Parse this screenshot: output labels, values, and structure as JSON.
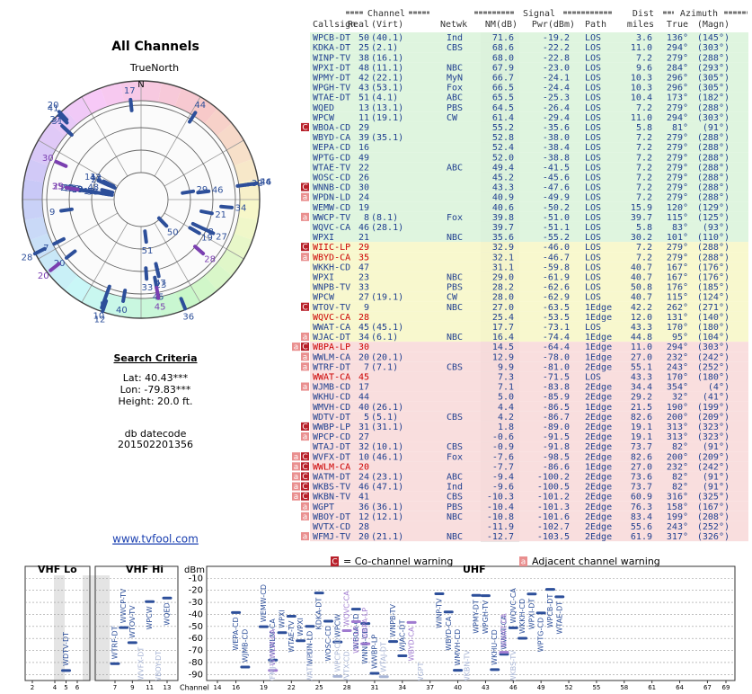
{
  "left": {
    "title": "All Channels",
    "north_label": "TrueNorth",
    "north_marker": "N",
    "criteria_title": "Search Criteria",
    "criteria": [
      "Lat: 40.43***",
      "Lon: -79.83***",
      "Height: 20.0 ft."
    ],
    "datecode_label": "db datecode",
    "datecode": "201502201356",
    "link": "www.tvfool.com"
  },
  "table": {
    "groups": [
      "Channel",
      "Signal",
      "Dist",
      "Azimuth"
    ],
    "columns": [
      "Callsign",
      "Real",
      "(Virt)",
      "Netwk",
      "NM(dB)",
      "Pwr(dBm)",
      "Path",
      "miles",
      "True",
      "(Magn)"
    ],
    "warning_icons": {
      "co": "C",
      "adj": "a"
    },
    "rows": [
      {
        "call": "WPCB-DT",
        "real": 50,
        "virt": "(40.1)",
        "net": "Ind",
        "nm": 71.6,
        "pwr": -19.2,
        "path": "LOS",
        "dist": 3.6,
        "true": {
          "value": 136,
          "label": "136°"
        },
        "magn": "(145°)",
        "bg": "#d9f3d9"
      },
      {
        "call": "KDKA-DT",
        "real": 25,
        "virt": "(2.1)",
        "net": "CBS",
        "nm": 68.6,
        "pwr": -22.2,
        "path": "LOS",
        "dist": {
          "value": 11,
          "label": "11.0"
        },
        "true": {
          "value": 294,
          "label": "294°"
        },
        "magn": "(303°)",
        "bg": "#d9f3d9"
      },
      {
        "call": "WINP-TV",
        "real": 38,
        "virt": "(16.1)",
        "nm": {
          "value": 68,
          "label": "68.0"
        },
        "pwr": -22.8,
        "path": "LOS",
        "dist": 7.2,
        "true": {
          "value": 279,
          "label": "279°"
        },
        "magn": "(288°)",
        "bg": "#d9f3d9"
      },
      {
        "call": "WPXI-DT",
        "real": 48,
        "virt": "(11.1)",
        "net": "NBC",
        "nm": 67.9,
        "pwr": {
          "value": -23,
          "label": "-23.0"
        },
        "path": "LOS",
        "dist": 9.6,
        "true": {
          "value": 284,
          "label": "284°"
        },
        "magn": "(293°)",
        "bg": "#d9f3d9"
      },
      {
        "call": "WPMY-DT",
        "real": 42,
        "virt": "(22.1)",
        "net": "MyN",
        "nm": 66.7,
        "pwr": -24.1,
        "path": "LOS",
        "dist": 10.3,
        "true": {
          "value": 296,
          "label": "296°"
        },
        "magn": "(305°)",
        "bg": "#d9f3d9"
      },
      {
        "call": "WPGH-TV",
        "real": 43,
        "virt": "(53.1)",
        "net": "Fox",
        "nm": 66.5,
        "pwr": -24.4,
        "path": "LOS",
        "dist": 10.3,
        "true": {
          "value": 296,
          "label": "296°"
        },
        "magn": "(305°)",
        "bg": "#d9f3d9"
      },
      {
        "call": "WTAE-DT",
        "real": 51,
        "virt": "(4.1)",
        "net": "ABC",
        "nm": 65.5,
        "pwr": -25.3,
        "path": "LOS",
        "dist": 10.4,
        "true": {
          "value": 173,
          "label": "173°"
        },
        "magn": "(182°)",
        "bg": "#d9f3d9"
      },
      {
        "call": "WQED",
        "real": 13,
        "virt": "(13.1)",
        "net": "PBS",
        "nm": 64.5,
        "pwr": -26.4,
        "path": "LOS",
        "dist": 7.2,
        "true": {
          "value": 279,
          "label": "279°"
        },
        "magn": "(288°)",
        "bg": "#d9f3d9"
      },
      {
        "call": "WPCW",
        "real": 11,
        "virt": "(19.1)",
        "net": "CW",
        "nm": 61.4,
        "pwr": -29.4,
        "path": "LOS",
        "dist": {
          "value": 11,
          "label": "11.0"
        },
        "true": {
          "value": 294,
          "label": "294°"
        },
        "magn": "(303°)",
        "bg": "#d9f3d9"
      },
      {
        "call": "WBOA-CD",
        "real": 29,
        "nm": 55.2,
        "pwr": -35.6,
        "path": "LOS",
        "dist": 5.8,
        "true": {
          "value": 81,
          "label": "81°"
        },
        "magn": "(91°)",
        "bg": "#d9f3d9",
        "co": true
      },
      {
        "call": "WBYD-CA",
        "real": 39,
        "virt": "(35.1)",
        "nm": 52.8,
        "pwr": {
          "value": -38,
          "label": "-38.0"
        },
        "path": "LOS",
        "dist": 7.2,
        "true": {
          "value": 279,
          "label": "279°"
        },
        "magn": "(288°)",
        "bg": "#d9f3d9"
      },
      {
        "call": "WEPA-CD",
        "real": 16,
        "nm": 52.4,
        "pwr": -38.4,
        "path": "LOS",
        "dist": 7.2,
        "true": {
          "value": 279,
          "label": "279°"
        },
        "magn": "(288°)",
        "bg": "#d9f3d9"
      },
      {
        "call": "WPTG-CD",
        "real": 49,
        "nm": {
          "value": 52,
          "label": "52.0"
        },
        "pwr": -38.8,
        "path": "LOS",
        "dist": 7.2,
        "true": {
          "value": 279,
          "label": "279°"
        },
        "magn": "(288°)",
        "bg": "#d9f3d9"
      },
      {
        "call": "WTAE-TV",
        "real": 22,
        "net": "ABC",
        "nm": 49.4,
        "pwr": -41.5,
        "path": "LOS",
        "dist": 7.2,
        "true": {
          "value": 279,
          "label": "279°"
        },
        "magn": "(288°)",
        "bg": "#d9f3d9"
      },
      {
        "call": "WOSC-CD",
        "real": 26,
        "nm": 45.2,
        "pwr": -45.6,
        "path": "LOS",
        "dist": 7.2,
        "true": {
          "value": 279,
          "label": "279°"
        },
        "magn": "(288°)",
        "bg": "#d9f3d9"
      },
      {
        "call": "WNNB-CD",
        "real": 30,
        "nm": 43.3,
        "pwr": -47.6,
        "path": "LOS",
        "dist": 7.2,
        "true": {
          "value": 279,
          "label": "279°"
        },
        "magn": "(288°)",
        "bg": "#d9f3d9",
        "co": true
      },
      {
        "call": "WPDN-LD",
        "real": 24,
        "nm": 40.9,
        "pwr": -49.9,
        "path": "LOS",
        "dist": 7.2,
        "true": {
          "value": 279,
          "label": "279°"
        },
        "magn": "(288°)",
        "bg": "#d9f3d9",
        "adj": true
      },
      {
        "call": "WEMW-CD",
        "real": 19,
        "nm": 40.6,
        "pwr": -50.2,
        "path": "LOS",
        "dist": 15.9,
        "true": {
          "value": 120,
          "label": "120°"
        },
        "magn": "(129°)",
        "bg": "#d9f3d9"
      },
      {
        "call": "WWCP-TV",
        "real": 8,
        "virt": "(8.1)",
        "net": "Fox",
        "nm": 39.8,
        "pwr": {
          "value": -51,
          "label": "-51.0"
        },
        "path": "LOS",
        "dist": 39.7,
        "true": {
          "value": 115,
          "label": "115°"
        },
        "magn": "(125°)",
        "bg": "#d9f3d9",
        "adj": true
      },
      {
        "call": "WQVC-CA",
        "real": 46,
        "virt": "(28.1)",
        "nm": 39.7,
        "pwr": -51.1,
        "path": "LOS",
        "dist": 5.8,
        "true": {
          "value": 83,
          "label": "83°"
        },
        "magn": "(93°)",
        "bg": "#d9f3d9"
      },
      {
        "call": "WPXI",
        "real": 21,
        "net": "NBC",
        "nm": 35.6,
        "pwr": -55.2,
        "path": "LOS",
        "dist": 30.2,
        "true": {
          "value": 101,
          "label": "101°"
        },
        "magn": "(110°)",
        "bg": "#d9f3d9"
      },
      {
        "call": "WIIC-LP",
        "real": 29,
        "nm": 32.9,
        "pwr": {
          "value": -46,
          "label": "-46.0"
        },
        "path": "LOS",
        "dist": 7.2,
        "true": {
          "value": 279,
          "label": "279°"
        },
        "magn": "(288°)",
        "bg": "#f7f7c6",
        "co": true,
        "fg": "#cc0000"
      },
      {
        "call": "WBYD-CA",
        "real": 35,
        "nm": 32.1,
        "pwr": -46.7,
        "path": "LOS",
        "dist": 7.2,
        "true": {
          "value": 279,
          "label": "279°"
        },
        "magn": "(288°)",
        "bg": "#f7f7c6",
        "adj": true,
        "fg": "#cc0000"
      },
      {
        "call": "WKKH-CD",
        "real": 47,
        "nm": 31.1,
        "pwr": -59.8,
        "path": "LOS",
        "dist": 40.7,
        "true": {
          "value": 167,
          "label": "167°"
        },
        "magn": "(176°)",
        "bg": "#f7f7c6"
      },
      {
        "call": "WPXI",
        "real": 23,
        "net": "NBC",
        "nm": {
          "value": 29,
          "label": "29.0"
        },
        "pwr": -61.9,
        "path": "LOS",
        "dist": 40.7,
        "true": {
          "value": 167,
          "label": "167°"
        },
        "magn": "(176°)",
        "bg": "#f7f7c6"
      },
      {
        "call": "WNPB-TV",
        "real": 33,
        "net": "PBS",
        "nm": 28.2,
        "pwr": -62.6,
        "path": "LOS",
        "dist": 50.8,
        "true": {
          "value": 176,
          "label": "176°"
        },
        "magn": "(185°)",
        "bg": "#f7f7c6"
      },
      {
        "call": "WPCW",
        "real": 27,
        "virt": "(19.1)",
        "net": "CW",
        "nm": {
          "value": 28,
          "label": "28.0"
        },
        "pwr": -62.9,
        "path": "LOS",
        "dist": 40.7,
        "true": {
          "value": 115,
          "label": "115°"
        },
        "magn": "(124°)",
        "bg": "#f7f7c6"
      },
      {
        "call": "WTOV-TV",
        "real": 9,
        "net": "NBC",
        "nm": {
          "value": 27,
          "label": "27.0"
        },
        "pwr": -63.5,
        "path": "1Edge",
        "dist": 42.2,
        "true": {
          "value": 262,
          "label": "262°"
        },
        "magn": "(271°)",
        "bg": "#f7f7c6",
        "co": true
      },
      {
        "call": "WQVC-CA",
        "real": 28,
        "nm": 25.4,
        "pwr": -53.5,
        "path": "1Edge",
        "dist": {
          "value": 12,
          "label": "12.0"
        },
        "true": {
          "value": 131,
          "label": "131°"
        },
        "magn": "(140°)",
        "bg": "#f7f7c6",
        "fg": "#cc0000"
      },
      {
        "call": "WWAT-CA",
        "real": 45,
        "virt": "(45.1)",
        "nm": 17.7,
        "pwr": -73.1,
        "path": "LOS",
        "dist": 43.3,
        "true": {
          "value": 170,
          "label": "170°"
        },
        "magn": "(180°)",
        "bg": "#f7f7c6"
      },
      {
        "call": "WJAC-DT",
        "real": 34,
        "virt": "(6.1)",
        "net": "NBC",
        "nm": 16.4,
        "pwr": -74.4,
        "path": "1Edge",
        "dist": 44.8,
        "true": {
          "value": 95,
          "label": "95°"
        },
        "magn": "(104°)",
        "bg": "#f7f7c6",
        "adj": true
      },
      {
        "call": "WBPA-LP",
        "real": 30,
        "nm": 14.5,
        "pwr": -64.4,
        "path": "1Edge",
        "dist": {
          "value": 11,
          "label": "11.0"
        },
        "true": {
          "value": 294,
          "label": "294°"
        },
        "magn": "(303°)",
        "bg": "#f8d8d8",
        "adj": true,
        "co": true,
        "fg": "#cc0000"
      },
      {
        "call": "WWLM-CA",
        "real": 20,
        "virt": "(20.1)",
        "nm": 12.9,
        "pwr": {
          "value": -78,
          "label": "-78.0"
        },
        "path": "1Edge",
        "dist": {
          "value": 27,
          "label": "27.0"
        },
        "true": {
          "value": 232,
          "label": "232°"
        },
        "magn": "(242°)",
        "bg": "#f8d8d8",
        "adj": true
      },
      {
        "call": "WTRF-DT",
        "real": 7,
        "virt": "(7.1)",
        "net": "CBS",
        "nm": 9.9,
        "pwr": {
          "value": -81,
          "label": "-81.0"
        },
        "path": "2Edge",
        "dist": 55.1,
        "true": {
          "value": 243,
          "label": "243°"
        },
        "magn": "(252°)",
        "bg": "#f8d8d8",
        "adj": true
      },
      {
        "call": "WWAT-CA",
        "real": 45,
        "nm": 7.3,
        "pwr": -71.5,
        "path": "LOS",
        "dist": 43.3,
        "true": {
          "value": 170,
          "label": "170°"
        },
        "magn": "(180°)",
        "bg": "#f8d8d8",
        "fg": "#cc0000"
      },
      {
        "call": "WJMB-CD",
        "real": 17,
        "nm": 7.1,
        "pwr": -83.8,
        "path": "2Edge",
        "dist": 34.4,
        "true": {
          "value": 354,
          "label": "354°"
        },
        "magn": "(4°)",
        "bg": "#f8d8d8",
        "adj": true
      },
      {
        "call": "WKHU-CD",
        "real": 44,
        "nm": {
          "value": 5,
          "label": "5.0"
        },
        "pwr": -85.9,
        "path": "2Edge",
        "dist": 29.2,
        "true": {
          "value": 32,
          "label": "32°"
        },
        "magn": "(41°)",
        "bg": "#f8d8d8"
      },
      {
        "call": "WMVH-CD",
        "real": 40,
        "virt": "(26.1)",
        "nm": 4.4,
        "pwr": -86.5,
        "path": "1Edge",
        "dist": 21.5,
        "true": {
          "value": 190,
          "label": "190°"
        },
        "magn": "(199°)",
        "bg": "#f8d8d8"
      },
      {
        "call": "WDTV-DT",
        "real": 5,
        "virt": "(5.1)",
        "net": "CBS",
        "nm": 4.2,
        "pwr": -86.7,
        "path": "2Edge",
        "dist": 82.6,
        "true": {
          "value": 200,
          "label": "200°"
        },
        "magn": "(209°)",
        "bg": "#f8d8d8"
      },
      {
        "call": "WWBP-LP",
        "real": 31,
        "virt": "(31.1)",
        "nm": 1.8,
        "pwr": {
          "value": -89,
          "label": "-89.0"
        },
        "path": "2Edge",
        "dist": 19.1,
        "true": {
          "value": 313,
          "label": "313°"
        },
        "magn": "(323°)",
        "bg": "#f8d8d8",
        "co": true
      },
      {
        "call": "WPCP-CD",
        "real": 27,
        "nm": -0.6,
        "pwr": -91.5,
        "path": "2Edge",
        "dist": 19.1,
        "true": {
          "value": 313,
          "label": "313°"
        },
        "magn": "(323°)",
        "bg": "#f8d8d8",
        "adj": true
      },
      {
        "call": "WTAJ-DT",
        "real": 32,
        "virt": "(10.1)",
        "net": "CBS",
        "nm": -0.9,
        "pwr": -91.8,
        "path": "2Edge",
        "dist": 73.7,
        "true": {
          "value": 82,
          "label": "82°"
        },
        "magn": "(91°)",
        "bg": "#f8d8d8"
      },
      {
        "call": "WVFX-DT",
        "real": 10,
        "virt": "(46.1)",
        "net": "Fox",
        "nm": -7.6,
        "pwr": -98.5,
        "path": "2Edge",
        "dist": 82.6,
        "true": {
          "value": 200,
          "label": "200°"
        },
        "magn": "(209°)",
        "bg": "#f8d8d8",
        "adj": true,
        "co": true
      },
      {
        "call": "WWLM-CA",
        "real": 20,
        "nm": -7.7,
        "pwr": -86.6,
        "path": "1Edge",
        "dist": {
          "value": 27,
          "label": "27.0"
        },
        "true": {
          "value": 232,
          "label": "232°"
        },
        "magn": "(242°)",
        "bg": "#f8d8d8",
        "adj": true,
        "co": true,
        "fg": "#cc0000"
      },
      {
        "call": "WATM-DT",
        "real": 24,
        "virt": "(23.1)",
        "net": "ABC",
        "nm": -9.4,
        "pwr": -100.2,
        "path": "2Edge",
        "dist": 73.6,
        "true": {
          "value": 82,
          "label": "82°"
        },
        "magn": "(91°)",
        "bg": "#f8d8d8",
        "adj": true,
        "co": true
      },
      {
        "call": "WKBS-TV",
        "real": 46,
        "virt": "(47.1)",
        "net": "Ind",
        "nm": -9.6,
        "pwr": -100.5,
        "path": "2Edge",
        "dist": 73.7,
        "true": {
          "value": 82,
          "label": "82°"
        },
        "magn": "(91°)",
        "bg": "#f8d8d8",
        "adj": true,
        "co": true
      },
      {
        "call": "WKBN-TV",
        "real": 41,
        "net": "CBS",
        "nm": -10.3,
        "pwr": -101.2,
        "path": "2Edge",
        "dist": 60.9,
        "true": {
          "value": 316,
          "label": "316°"
        },
        "magn": "(325°)",
        "bg": "#f8d8d8",
        "adj": true,
        "co": true
      },
      {
        "call": "WGPT",
        "real": 36,
        "virt": "(36.1)",
        "net": "PBS",
        "nm": -10.4,
        "pwr": -101.3,
        "path": "2Edge",
        "dist": 76.3,
        "true": {
          "value": 158,
          "label": "158°"
        },
        "magn": "(167°)",
        "bg": "#f8d8d8",
        "adj": true
      },
      {
        "call": "WBOY-DT",
        "real": 12,
        "virt": "(12.1)",
        "net": "NBC",
        "nm": -10.8,
        "pwr": -101.6,
        "path": "2Edge",
        "dist": 83.4,
        "true": {
          "value": 199,
          "label": "199°"
        },
        "magn": "(208°)",
        "bg": "#f8d8d8",
        "adj": true
      },
      {
        "call": "WVTX-CD",
        "real": 28,
        "nm": -11.9,
        "pwr": -102.7,
        "path": "2Edge",
        "dist": 55.6,
        "true": {
          "value": 243,
          "label": "243°"
        },
        "magn": "(252°)",
        "bg": "#f8d8d8"
      },
      {
        "call": "WFMJ-TV",
        "real": 20,
        "virt": "(21.1)",
        "net": "NBC",
        "nm": -12.7,
        "pwr": -103.5,
        "path": "2Edge",
        "dist": 61.9,
        "true": {
          "value": 317,
          "label": "317°"
        },
        "magn": "(326°)",
        "bg": "#f8d8d8",
        "adj": true
      }
    ]
  },
  "legend": {
    "co": "= Co-channel warning",
    "adj": "Adjacent channel warning"
  },
  "chart_data": {
    "type": "channel-strip",
    "ylabel": "dBm",
    "xlabel": "Channel",
    "ylim": [
      -95,
      0
    ],
    "yticks": [
      -10,
      -20,
      -30,
      -40,
      -50,
      -60,
      -70,
      -80,
      -90
    ],
    "sections": [
      {
        "label": "VHF Lo",
        "xlim": [
          2,
          6
        ],
        "xticks": [
          2,
          4,
          5,
          6
        ]
      },
      {
        "label": "VHF Hi",
        "xlim": [
          7,
          13
        ],
        "xticks": [
          7,
          9,
          11,
          13
        ]
      },
      {
        "label": "UHF",
        "xlim": [
          14,
          69
        ],
        "xticks": [
          14,
          16,
          19,
          22,
          25,
          28,
          31,
          34,
          37,
          40,
          43,
          46,
          49,
          52,
          55,
          58,
          61,
          64,
          67,
          69
        ]
      }
    ],
    "marker_color": "#2d4f9a",
    "alert_color": "#a07bd0",
    "weak_color": "#a9b6d6"
  }
}
